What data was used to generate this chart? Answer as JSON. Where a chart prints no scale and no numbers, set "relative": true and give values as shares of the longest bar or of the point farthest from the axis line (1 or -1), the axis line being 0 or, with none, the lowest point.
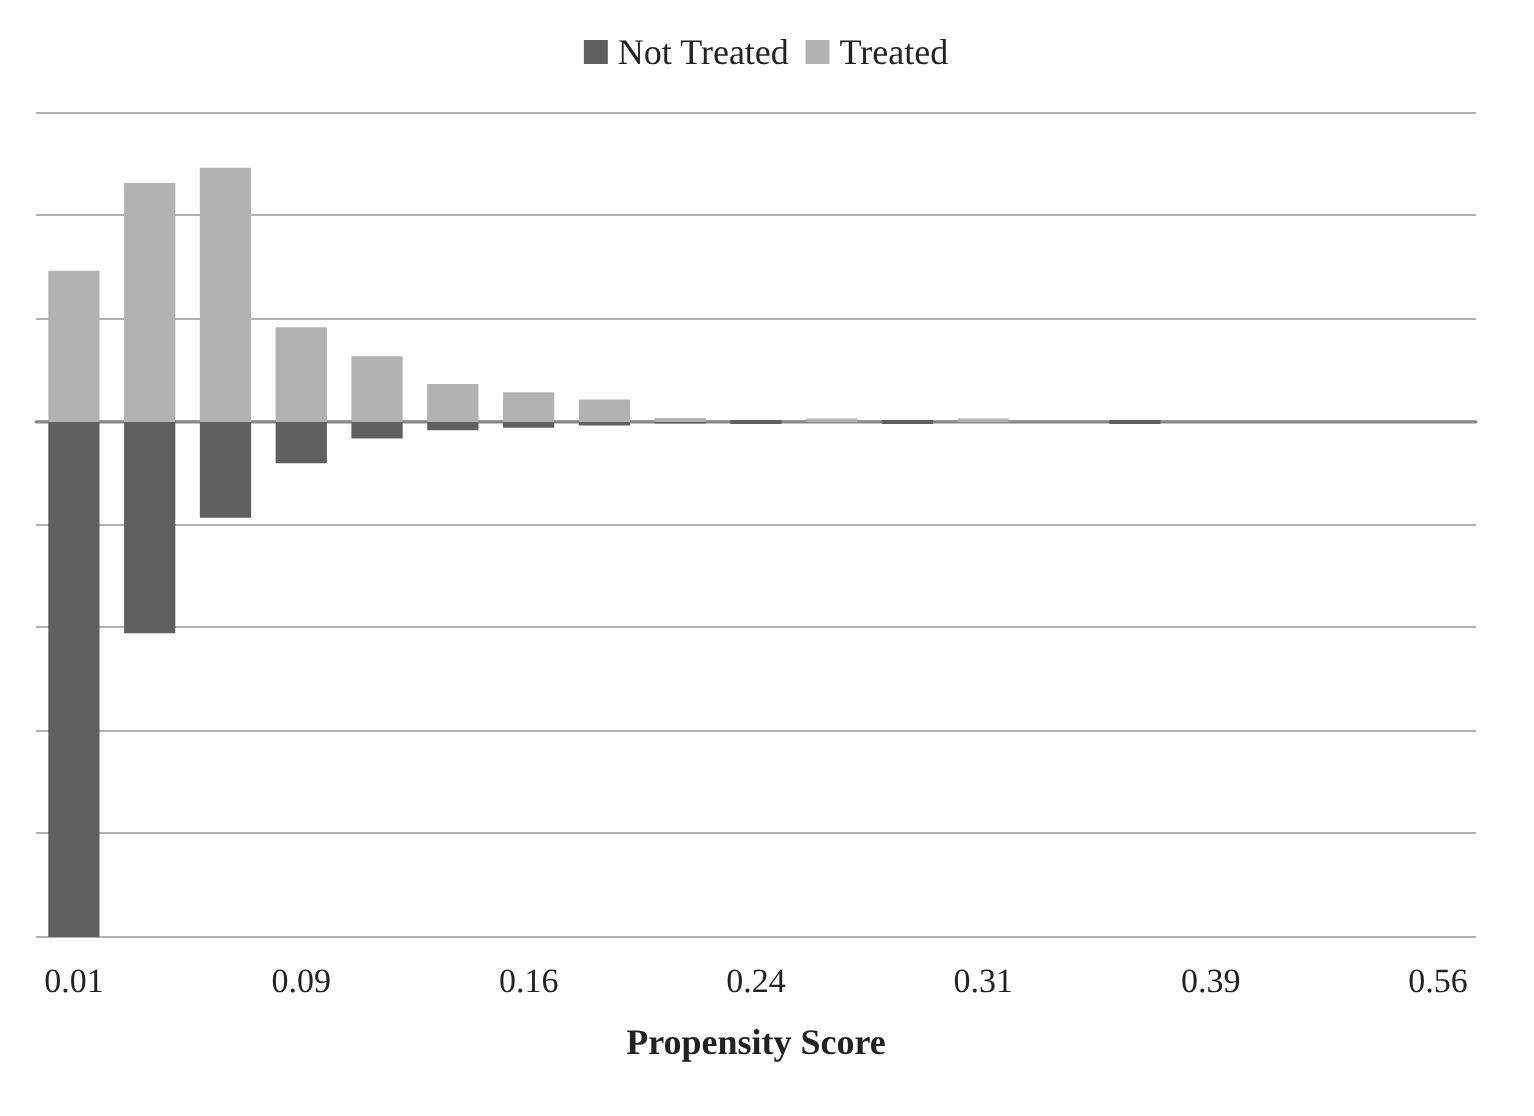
{
  "chart_data": {
    "type": "bar",
    "xlabel": "Propensity Score",
    "relative": true,
    "categories": [
      "0.01",
      null,
      null,
      "0.09",
      null,
      null,
      "0.16",
      null,
      null,
      "0.24",
      null,
      null,
      "0.31",
      null,
      null,
      "0.39",
      null,
      null,
      "0.56"
    ],
    "series": [
      {
        "name": "Not Treated",
        "color": "#606060",
        "values": [
          -1,
          -0.41,
          -0.186,
          -0.08,
          -0.032,
          -0.016,
          -0.011,
          -0.007,
          -0.003,
          -0.004,
          null,
          -0.004,
          null,
          null,
          -0.004,
          null,
          null,
          null,
          null
        ]
      },
      {
        "name": "Treated",
        "color": "#b2b2b2",
        "values": [
          0.29,
          0.46,
          0.49,
          0.18,
          0.124,
          0.07,
          0.054,
          0.04,
          0.004,
          null,
          0.003,
          null,
          0.003,
          null,
          null,
          null,
          null,
          null,
          null
        ]
      }
    ],
    "grid": "y",
    "legend": "top"
  }
}
